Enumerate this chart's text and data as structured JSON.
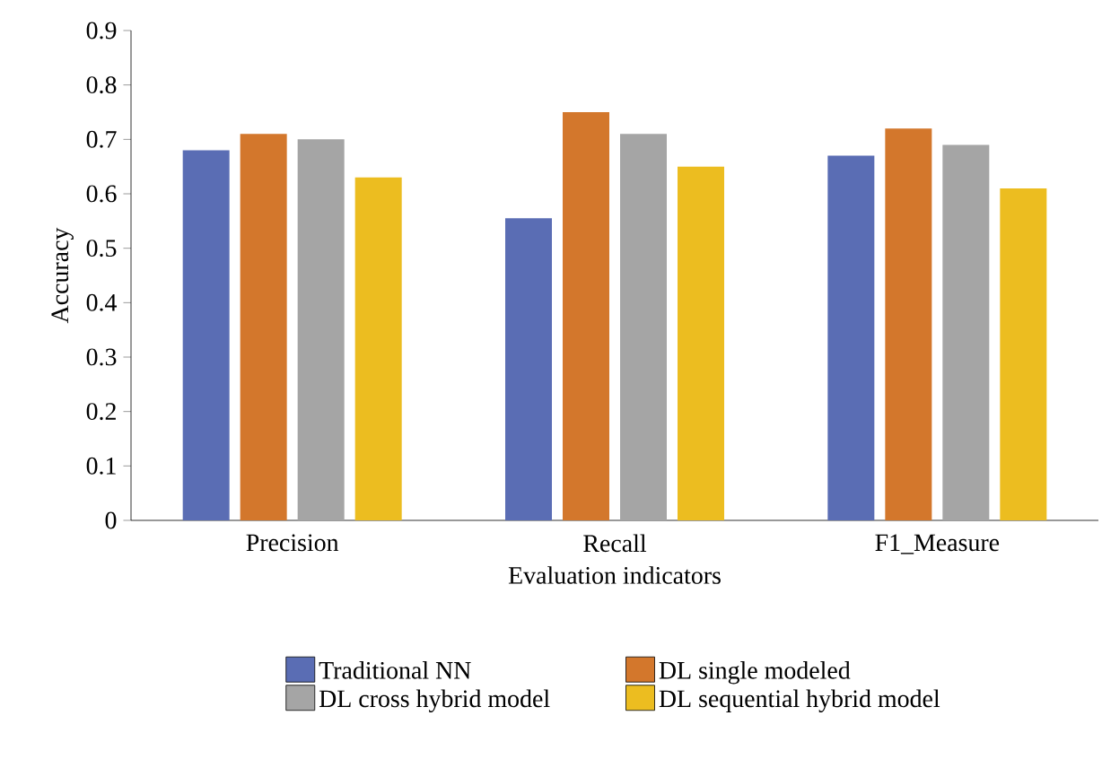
{
  "chart_data": {
    "type": "bar",
    "xlabel": "Evaluation indicators",
    "ylabel": "Accuracy",
    "categories": [
      "Precision",
      "Recall",
      "F1_Measure"
    ],
    "series": [
      {
        "name": "Traditional NN",
        "color": "#5a6db4",
        "values": [
          0.68,
          0.555,
          0.67
        ]
      },
      {
        "name": "DL single modeled",
        "color": "#d3772c",
        "values": [
          0.71,
          0.75,
          0.72
        ]
      },
      {
        "name": "DL cross hybrid model",
        "color": "#a5a5a5",
        "values": [
          0.7,
          0.71,
          0.69
        ]
      },
      {
        "name": "DL sequential hybrid model",
        "color": "#ecbd20",
        "values": [
          0.63,
          0.65,
          0.61
        ]
      }
    ],
    "ylim": [
      0,
      0.9
    ],
    "yticks": [
      0,
      0.1,
      0.2,
      0.3,
      0.4,
      0.5,
      0.6,
      0.7,
      0.8,
      0.9
    ],
    "grid": false,
    "legend": "bottom"
  }
}
